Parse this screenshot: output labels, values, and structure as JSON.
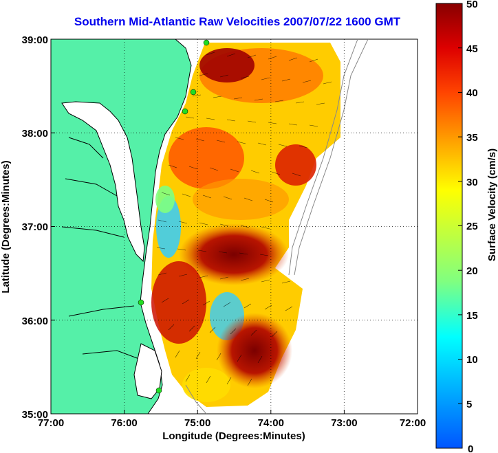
{
  "title": "Southern Mid-Atlantic Raw Velocities 2007/07/22 1600 GMT",
  "axes": {
    "xlabel": "Longitude (Degrees:Minutes)",
    "ylabel": "Latitude (Degrees:Minutes)",
    "x_ticks": [
      "77:00",
      "76:00",
      "75:00",
      "74:00",
      "73:00",
      "72:00"
    ],
    "y_ticks": [
      "39:00",
      "38:00",
      "37:00",
      "36:00",
      "35:00"
    ],
    "xlim": [
      -77,
      -72
    ],
    "ylim": [
      35,
      39
    ],
    "grid": "dotted"
  },
  "colorbar": {
    "label": "Surface Velocity (cm/s)",
    "ticks": [
      "0",
      "5",
      "10",
      "15",
      "20",
      "25",
      "30",
      "35",
      "40",
      "45",
      "50"
    ],
    "range": [
      0,
      50
    ],
    "colormap": "jet"
  },
  "colors": {
    "land": "#55f0a8",
    "coastline": "#000000",
    "ocean": "#ffffff",
    "title": "#0000ee",
    "station": "#22dd22"
  }
}
